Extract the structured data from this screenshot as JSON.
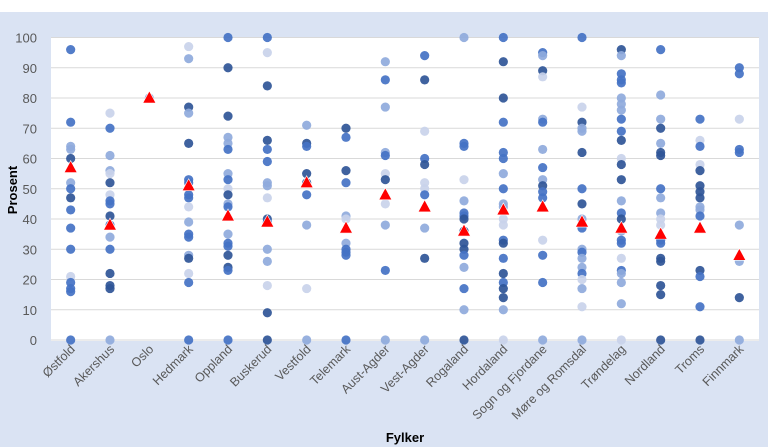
{
  "chart_data": {
    "type": "scatter",
    "title": "",
    "xlabel": "Fylker",
    "ylabel": "Prosent",
    "ylim": [
      0,
      100
    ],
    "yticks": [
      "0",
      "10",
      "20",
      "30",
      "40",
      "50",
      "60",
      "70",
      "80",
      "90",
      "100"
    ],
    "grid": true,
    "colors": {
      "d": "#2f5597",
      "m": "#4472c4",
      "l": "#8faadc",
      "v": "#c9d3ea",
      "mean": "#ff0000",
      "plot_bg": "#ffffff",
      "frame_bg": "#dae3f3",
      "grid": "#d9d9d9"
    },
    "categories": [
      "Østfold",
      "Akershus",
      "Oslo",
      "Hedmark",
      "Oppland",
      "Buskerud",
      "Vestfold",
      "Telemark",
      "Aust-Agder",
      "Vest-Agder",
      "Rogaland",
      "Hordaland",
      "Sogn og Fjordane",
      "Møre og Romsdal",
      "Trøndelag",
      "Nordland",
      "Troms",
      "Finnmark"
    ],
    "means": [
      57,
      38,
      80,
      51,
      41,
      39,
      52,
      37,
      48,
      44,
      36,
      43,
      44,
      39,
      37,
      35,
      37,
      28
    ],
    "points": [
      [
        [
          96,
          "m"
        ],
        [
          72,
          "m"
        ],
        [
          64,
          "l"
        ],
        [
          63,
          "l"
        ],
        [
          60,
          "d"
        ],
        [
          52,
          "l"
        ],
        [
          50,
          "m"
        ],
        [
          47,
          "d"
        ],
        [
          43,
          "m"
        ],
        [
          37,
          "m"
        ],
        [
          30,
          "m"
        ],
        [
          21,
          "v"
        ],
        [
          19,
          "m"
        ],
        [
          17,
          "m"
        ],
        [
          16,
          "m"
        ],
        [
          0,
          "m"
        ]
      ],
      [
        [
          75,
          "v"
        ],
        [
          70,
          "m"
        ],
        [
          61,
          "l"
        ],
        [
          56,
          "l"
        ],
        [
          55,
          "v"
        ],
        [
          52,
          "d"
        ],
        [
          48,
          "v"
        ],
        [
          46,
          "m"
        ],
        [
          45,
          "m"
        ],
        [
          41,
          "d"
        ],
        [
          38,
          "m"
        ],
        [
          34,
          "l"
        ],
        [
          30,
          "m"
        ],
        [
          22,
          "d"
        ],
        [
          18,
          "d"
        ],
        [
          17,
          "d"
        ],
        [
          0,
          "l"
        ]
      ],
      [
        [
          80,
          "l"
        ]
      ],
      [
        [
          97,
          "v"
        ],
        [
          93,
          "l"
        ],
        [
          77,
          "d"
        ],
        [
          75,
          "l"
        ],
        [
          65,
          "d"
        ],
        [
          53,
          "m"
        ],
        [
          52,
          "m"
        ],
        [
          48,
          "m"
        ],
        [
          47,
          "m"
        ],
        [
          44,
          "v"
        ],
        [
          39,
          "l"
        ],
        [
          35,
          "m"
        ],
        [
          34,
          "m"
        ],
        [
          28,
          "l"
        ],
        [
          27,
          "d"
        ],
        [
          22,
          "v"
        ],
        [
          19,
          "m"
        ],
        [
          0,
          "m"
        ]
      ],
      [
        [
          100,
          "m"
        ],
        [
          90,
          "d"
        ],
        [
          74,
          "d"
        ],
        [
          67,
          "l"
        ],
        [
          65,
          "l"
        ],
        [
          63,
          "m"
        ],
        [
          55,
          "l"
        ],
        [
          53,
          "m"
        ],
        [
          50,
          "v"
        ],
        [
          48,
          "d"
        ],
        [
          45,
          "l"
        ],
        [
          44,
          "m"
        ],
        [
          35,
          "l"
        ],
        [
          32,
          "m"
        ],
        [
          31,
          "m"
        ],
        [
          28,
          "d"
        ],
        [
          24,
          "d"
        ],
        [
          23,
          "m"
        ],
        [
          0,
          "m"
        ]
      ],
      [
        [
          100,
          "m"
        ],
        [
          95,
          "v"
        ],
        [
          84,
          "d"
        ],
        [
          66,
          "d"
        ],
        [
          63,
          "m"
        ],
        [
          59,
          "m"
        ],
        [
          52,
          "l"
        ],
        [
          51,
          "l"
        ],
        [
          47,
          "v"
        ],
        [
          40,
          "d"
        ],
        [
          39,
          "m"
        ],
        [
          30,
          "l"
        ],
        [
          26,
          "l"
        ],
        [
          18,
          "v"
        ],
        [
          9,
          "d"
        ],
        [
          0,
          "d"
        ]
      ],
      [
        [
          71,
          "l"
        ],
        [
          65,
          "d"
        ],
        [
          64,
          "m"
        ],
        [
          55,
          "d"
        ],
        [
          52,
          "d"
        ],
        [
          48,
          "m"
        ],
        [
          38,
          "l"
        ],
        [
          17,
          "v"
        ],
        [
          0,
          "l"
        ]
      ],
      [
        [
          70,
          "d"
        ],
        [
          67,
          "m"
        ],
        [
          56,
          "d"
        ],
        [
          52,
          "m"
        ],
        [
          41,
          "l"
        ],
        [
          40,
          "v"
        ],
        [
          32,
          "l"
        ],
        [
          30,
          "m"
        ],
        [
          29,
          "m"
        ],
        [
          28,
          "m"
        ],
        [
          0,
          "m"
        ]
      ],
      [
        [
          92,
          "l"
        ],
        [
          86,
          "m"
        ],
        [
          77,
          "l"
        ],
        [
          62,
          "l"
        ],
        [
          61,
          "m"
        ],
        [
          55,
          "v"
        ],
        [
          53,
          "d"
        ],
        [
          45,
          "v"
        ],
        [
          38,
          "l"
        ],
        [
          23,
          "m"
        ],
        [
          0,
          "l"
        ]
      ],
      [
        [
          94,
          "m"
        ],
        [
          86,
          "d"
        ],
        [
          69,
          "v"
        ],
        [
          60,
          "m"
        ],
        [
          58,
          "d"
        ],
        [
          52,
          "v"
        ],
        [
          50,
          "v"
        ],
        [
          48,
          "m"
        ],
        [
          37,
          "l"
        ],
        [
          27,
          "d"
        ],
        [
          0,
          "l"
        ]
      ],
      [
        [
          100,
          "l"
        ],
        [
          65,
          "m"
        ],
        [
          64,
          "m"
        ],
        [
          53,
          "v"
        ],
        [
          46,
          "l"
        ],
        [
          42,
          "m"
        ],
        [
          41,
          "m"
        ],
        [
          40,
          "d"
        ],
        [
          36,
          "d"
        ],
        [
          32,
          "d"
        ],
        [
          30,
          "d"
        ],
        [
          28,
          "m"
        ],
        [
          24,
          "l"
        ],
        [
          17,
          "m"
        ],
        [
          10,
          "l"
        ],
        [
          0,
          "d"
        ]
      ],
      [
        [
          100,
          "m"
        ],
        [
          92,
          "d"
        ],
        [
          80,
          "d"
        ],
        [
          72,
          "m"
        ],
        [
          62,
          "m"
        ],
        [
          60,
          "m"
        ],
        [
          55,
          "l"
        ],
        [
          50,
          "m"
        ],
        [
          45,
          "l"
        ],
        [
          44,
          "l"
        ],
        [
          40,
          "v"
        ],
        [
          38,
          "v"
        ],
        [
          33,
          "m"
        ],
        [
          32,
          "d"
        ],
        [
          27,
          "m"
        ],
        [
          22,
          "d"
        ],
        [
          19,
          "m"
        ],
        [
          17,
          "d"
        ],
        [
          14,
          "d"
        ],
        [
          10,
          "l"
        ],
        [
          0,
          "v"
        ]
      ],
      [
        [
          95,
          "m"
        ],
        [
          94,
          "l"
        ],
        [
          89,
          "d"
        ],
        [
          87,
          "v"
        ],
        [
          73,
          "l"
        ],
        [
          72,
          "m"
        ],
        [
          63,
          "l"
        ],
        [
          57,
          "m"
        ],
        [
          53,
          "l"
        ],
        [
          51,
          "d"
        ],
        [
          49,
          "m"
        ],
        [
          47,
          "m"
        ],
        [
          33,
          "v"
        ],
        [
          28,
          "m"
        ],
        [
          19,
          "m"
        ],
        [
          0,
          "l"
        ]
      ],
      [
        [
          100,
          "m"
        ],
        [
          77,
          "v"
        ],
        [
          72,
          "d"
        ],
        [
          70,
          "l"
        ],
        [
          69,
          "l"
        ],
        [
          62,
          "d"
        ],
        [
          50,
          "m"
        ],
        [
          45,
          "d"
        ],
        [
          40,
          "l"
        ],
        [
          37,
          "m"
        ],
        [
          30,
          "l"
        ],
        [
          29,
          "m"
        ],
        [
          27,
          "l"
        ],
        [
          24,
          "l"
        ],
        [
          22,
          "m"
        ],
        [
          20,
          "v"
        ],
        [
          17,
          "l"
        ],
        [
          11,
          "v"
        ],
        [
          0,
          "l"
        ]
      ],
      [
        [
          96,
          "d"
        ],
        [
          94,
          "l"
        ],
        [
          88,
          "m"
        ],
        [
          86,
          "m"
        ],
        [
          85,
          "m"
        ],
        [
          80,
          "l"
        ],
        [
          78,
          "l"
        ],
        [
          76,
          "l"
        ],
        [
          73,
          "m"
        ],
        [
          69,
          "m"
        ],
        [
          66,
          "d"
        ],
        [
          60,
          "v"
        ],
        [
          58,
          "d"
        ],
        [
          53,
          "d"
        ],
        [
          46,
          "l"
        ],
        [
          42,
          "m"
        ],
        [
          40,
          "d"
        ],
        [
          36,
          "l"
        ],
        [
          33,
          "m"
        ],
        [
          32,
          "m"
        ],
        [
          27,
          "v"
        ],
        [
          23,
          "m"
        ],
        [
          22,
          "l"
        ],
        [
          19,
          "l"
        ],
        [
          12,
          "l"
        ],
        [
          0,
          "v"
        ]
      ],
      [
        [
          96,
          "m"
        ],
        [
          81,
          "l"
        ],
        [
          73,
          "l"
        ],
        [
          70,
          "d"
        ],
        [
          65,
          "l"
        ],
        [
          62,
          "d"
        ],
        [
          61,
          "d"
        ],
        [
          50,
          "m"
        ],
        [
          47,
          "l"
        ],
        [
          42,
          "l"
        ],
        [
          40,
          "v"
        ],
        [
          38,
          "v"
        ],
        [
          33,
          "m"
        ],
        [
          32,
          "m"
        ],
        [
          27,
          "d"
        ],
        [
          26,
          "d"
        ],
        [
          18,
          "d"
        ],
        [
          15,
          "d"
        ],
        [
          0,
          "d"
        ]
      ],
      [
        [
          73,
          "m"
        ],
        [
          66,
          "v"
        ],
        [
          64,
          "m"
        ],
        [
          58,
          "v"
        ],
        [
          56,
          "d"
        ],
        [
          51,
          "d"
        ],
        [
          49,
          "d"
        ],
        [
          47,
          "d"
        ],
        [
          44,
          "l"
        ],
        [
          43,
          "l"
        ],
        [
          41,
          "m"
        ],
        [
          23,
          "d"
        ],
        [
          21,
          "m"
        ],
        [
          11,
          "m"
        ],
        [
          0,
          "d"
        ]
      ],
      [
        [
          90,
          "m"
        ],
        [
          88,
          "m"
        ],
        [
          73,
          "v"
        ],
        [
          63,
          "m"
        ],
        [
          62,
          "m"
        ],
        [
          38,
          "l"
        ],
        [
          26,
          "l"
        ],
        [
          14,
          "d"
        ],
        [
          0,
          "l"
        ]
      ]
    ]
  }
}
